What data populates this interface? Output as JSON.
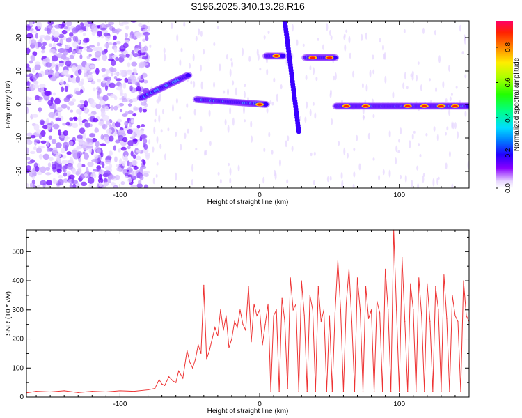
{
  "title": "S196.2025.340.13.28.R16",
  "chart_data": [
    {
      "type": "heatmap",
      "name": "spectrogram",
      "xlabel": "Height of straight line (km)",
      "ylabel": "Frequency (Hz)",
      "xlim": [
        -167,
        150
      ],
      "ylim": [
        -25,
        25
      ],
      "xticks": [
        -100,
        0,
        100
      ],
      "yticks": [
        -20,
        -10,
        0,
        10,
        20
      ],
      "colorbar": {
        "label": "Normalized spectral amplitude",
        "range": [
          0,
          0.95
        ],
        "ticks": [
          0.0,
          0.2,
          0.4,
          0.6,
          0.8
        ]
      },
      "features": [
        {
          "desc": "noise field",
          "x": [
            -167,
            -80
          ],
          "y": [
            -25,
            25
          ]
        },
        {
          "desc": "rising band",
          "x": [
            -85,
            -50
          ],
          "y": [
            2,
            9
          ]
        },
        {
          "desc": "band near 0 Hz",
          "x": [
            -45,
            5
          ],
          "y": [
            0,
            2
          ]
        },
        {
          "desc": "band near 15 Hz",
          "x": [
            5,
            55
          ],
          "y": [
            14,
            15
          ]
        },
        {
          "desc": "band near 0 Hz",
          "x": [
            55,
            150
          ],
          "y": [
            -1,
            0
          ]
        },
        {
          "desc": "streak",
          "x": [
            18,
            28
          ],
          "y": [
            25,
            -8
          ]
        }
      ]
    },
    {
      "type": "line",
      "name": "snr",
      "xlabel": "Height of straight line (km)",
      "ylabel": "SNR (10 * v/v)",
      "xlim": [
        -167,
        150
      ],
      "ylim": [
        0,
        575
      ],
      "xticks": [
        -100,
        0,
        100
      ],
      "yticks": [
        0,
        100,
        200,
        300,
        400,
        500
      ],
      "color": "#ee3333",
      "series": [
        {
          "name": "SNR",
          "x": [
            -167,
            -160,
            -150,
            -140,
            -130,
            -120,
            -110,
            -100,
            -90,
            -80,
            -75,
            -72,
            -70,
            -68,
            -65,
            -62,
            -60,
            -58,
            -55,
            -52,
            -50,
            -48,
            -46,
            -44,
            -42,
            -40,
            -38,
            -36,
            -34,
            -32,
            -30,
            -28,
            -26,
            -24,
            -22,
            -20,
            -18,
            -16,
            -14,
            -12,
            -10,
            -8,
            -6,
            -4,
            -2,
            0,
            2,
            4,
            6,
            8,
            10,
            12,
            14,
            16,
            18,
            20,
            22,
            24,
            26,
            28,
            30,
            32,
            34,
            36,
            38,
            40,
            42,
            44,
            46,
            48,
            50,
            52,
            54,
            56,
            58,
            60,
            62,
            64,
            66,
            68,
            70,
            72,
            74,
            76,
            78,
            80,
            82,
            84,
            86,
            88,
            90,
            92,
            94,
            96,
            98,
            100,
            102,
            104,
            106,
            108,
            110,
            112,
            114,
            116,
            118,
            120,
            122,
            124,
            126,
            128,
            130,
            132,
            134,
            136,
            138,
            140,
            142,
            144,
            146,
            148,
            150
          ],
          "values": [
            15,
            20,
            18,
            22,
            16,
            20,
            18,
            22,
            20,
            25,
            30,
            60,
            45,
            40,
            70,
            55,
            50,
            90,
            65,
            160,
            120,
            100,
            130,
            180,
            150,
            385,
            130,
            160,
            200,
            240,
            210,
            300,
            230,
            280,
            170,
            200,
            260,
            240,
            300,
            250,
            230,
            380,
            190,
            320,
            280,
            300,
            180,
            250,
            320,
            20,
            280,
            300,
            20,
            340,
            260,
            30,
            410,
            300,
            320,
            20,
            400,
            280,
            20,
            350,
            300,
            20,
            380,
            260,
            300,
            20,
            280,
            20,
            290,
            470,
            300,
            20,
            320,
            440,
            260,
            20,
            410,
            300,
            20,
            380,
            270,
            300,
            20,
            330,
            290,
            20,
            440,
            300,
            20,
            575,
            300,
            20,
            480,
            260,
            20,
            390,
            300,
            20,
            410,
            280,
            20,
            390,
            260,
            20,
            380,
            300,
            20,
            420,
            270,
            20,
            350,
            280,
            260,
            20,
            400,
            280,
            260
          ]
        }
      ]
    }
  ]
}
